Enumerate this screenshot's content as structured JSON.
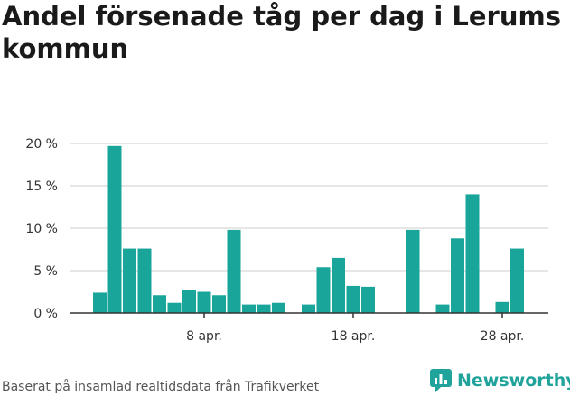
{
  "title": "Andel försenade tåg per dag i Lerums kommun",
  "footer": {
    "source": "Baserat på insamlad realtidsdata från Trafikverket",
    "brand": "Newsworthy"
  },
  "colors": {
    "bar": "#1aa59a",
    "grid": "#dddddd",
    "axis": "#333333",
    "brand": "#20a39b"
  },
  "chart_data": {
    "type": "bar",
    "title": "Andel försenade tåg per dag i Lerums kommun",
    "xlabel": "",
    "ylabel": "",
    "ylim": [
      0,
      20
    ],
    "y_ticks": [
      0,
      5,
      10,
      15,
      20
    ],
    "y_tick_labels": [
      "0 %",
      "5 %",
      "10 %",
      "15 %",
      "20 %"
    ],
    "grid": true,
    "x_range_days": [
      1,
      30
    ],
    "x_ticks": [
      {
        "day": 8,
        "label": "8 apr."
      },
      {
        "day": 18,
        "label": "18 apr."
      },
      {
        "day": 28,
        "label": "28 apr."
      }
    ],
    "categories": [
      "1 apr.",
      "2 apr.",
      "3 apr.",
      "4 apr.",
      "5 apr.",
      "6 apr.",
      "7 apr.",
      "8 apr.",
      "9 apr.",
      "10 apr.",
      "11 apr.",
      "12 apr.",
      "13 apr.",
      "14 apr.",
      "15 apr.",
      "16 apr.",
      "17 apr.",
      "18 apr.",
      "19 apr.",
      "20 apr.",
      "21 apr.",
      "22 apr.",
      "23 apr.",
      "24 apr.",
      "25 apr.",
      "26 apr.",
      "27 apr.",
      "28 apr.",
      "29 apr.",
      "30 apr."
    ],
    "values": [
      2.4,
      19.7,
      7.6,
      7.6,
      2.1,
      1.2,
      2.7,
      2.5,
      2.1,
      9.8,
      1.0,
      1.0,
      1.2,
      null,
      1.0,
      5.4,
      6.5,
      3.2,
      3.1,
      null,
      null,
      9.8,
      null,
      1.0,
      8.8,
      14.0,
      null,
      1.3,
      7.6,
      null
    ]
  }
}
